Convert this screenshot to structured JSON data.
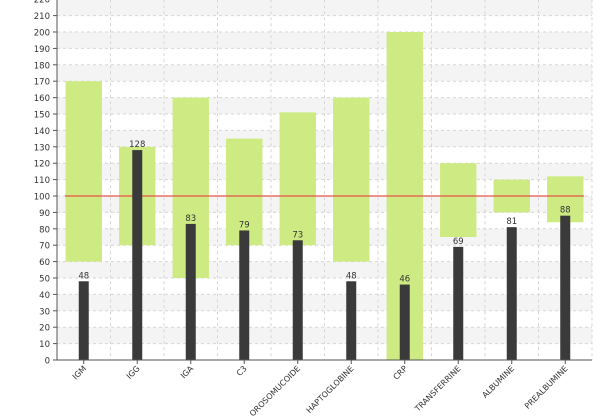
{
  "chart_data": {
    "type": "bar",
    "title": "",
    "xlabel": "",
    "ylabel": "",
    "ylim": [
      0,
      220
    ],
    "ytick_step": 10,
    "grid": true,
    "legend": "none",
    "categories": [
      "IGM",
      "IGG",
      "IGA",
      "C3",
      "OROSOMUCOIDE",
      "HAPTOGLOBINE",
      "CRP",
      "TRANSFERRINE",
      "ALBUMINE",
      "PREALBUMINE"
    ],
    "reference_line": {
      "value": 100,
      "color": "#e8534a"
    },
    "series": [
      {
        "kind": "range",
        "color": "#cdeb82",
        "low": [
          60,
          70,
          50,
          70,
          70,
          60,
          0,
          75,
          90,
          84
        ],
        "high": [
          170,
          130,
          160,
          135,
          151,
          160,
          200,
          120,
          110,
          112
        ]
      },
      {
        "kind": "value",
        "color": "#3a3a3a",
        "values": [
          48,
          128,
          83,
          79,
          73,
          48,
          46,
          69,
          81,
          88
        ],
        "labels": [
          "48",
          "128",
          "83",
          "79",
          "73",
          "48",
          "46",
          "69",
          "81",
          "88"
        ]
      }
    ]
  }
}
